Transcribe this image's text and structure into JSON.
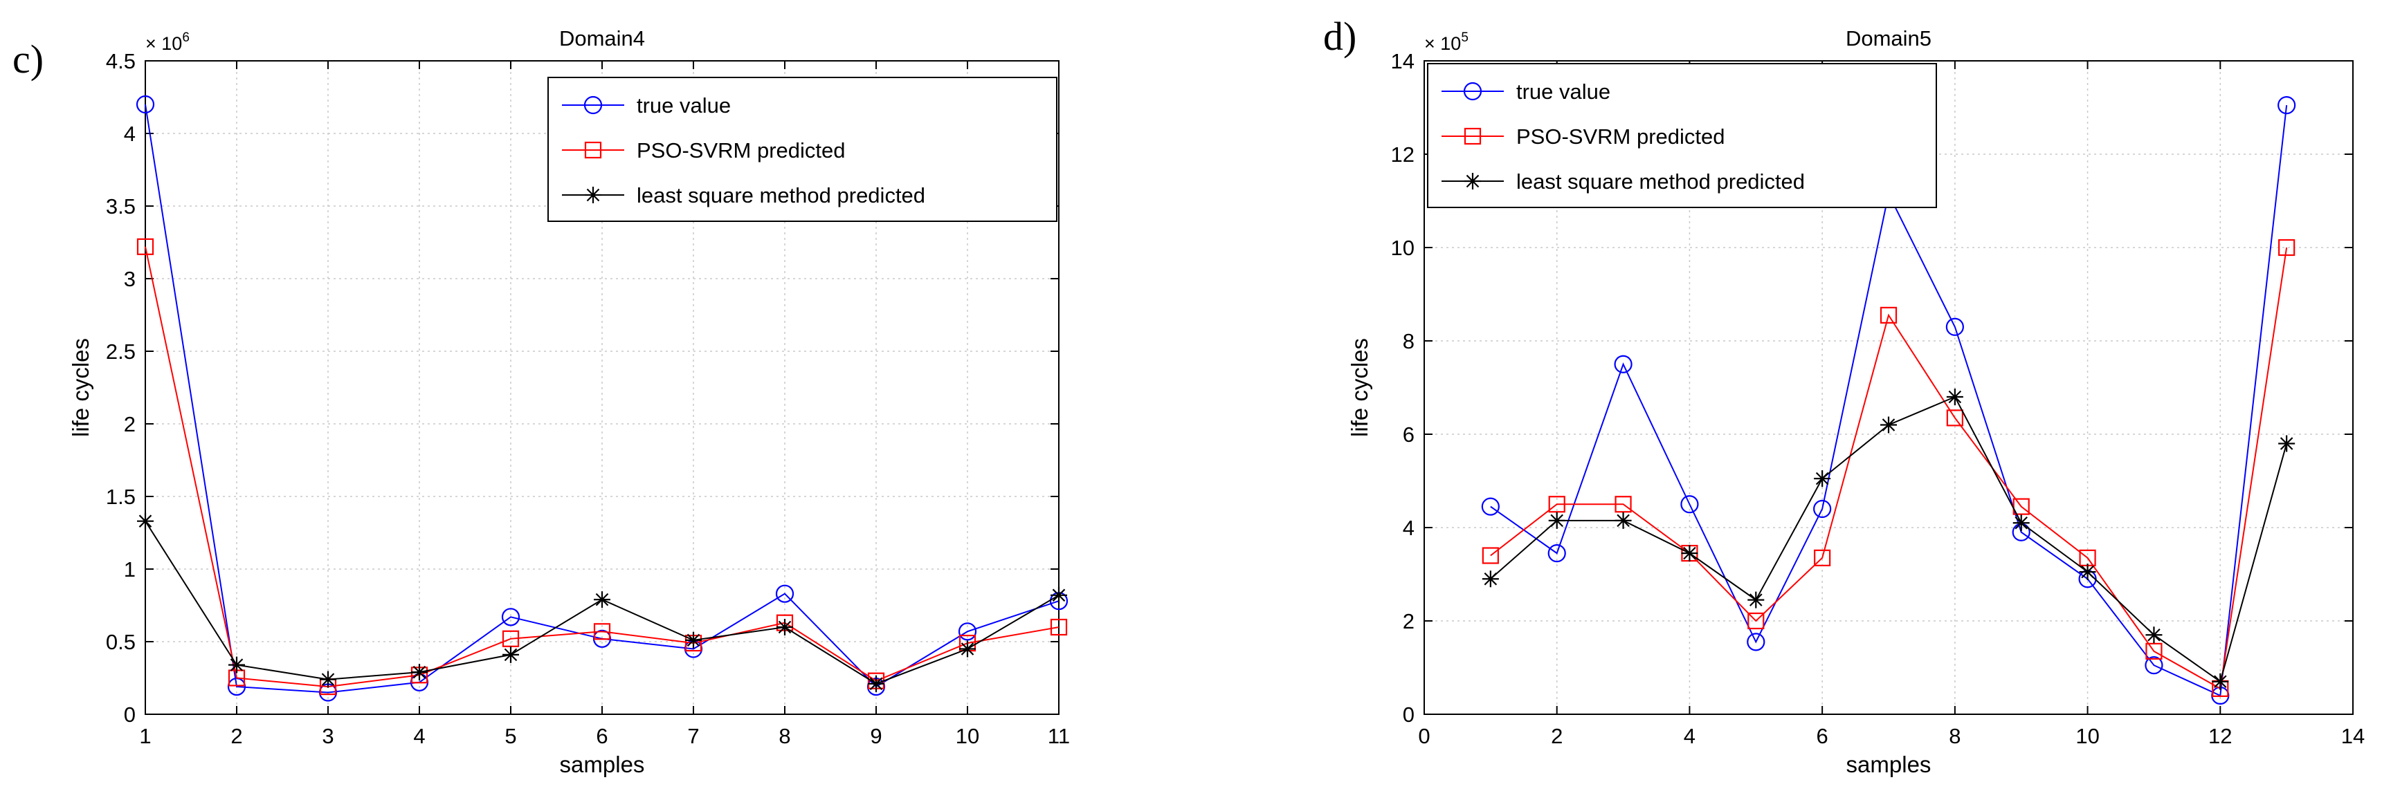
{
  "figure": {
    "panels": [
      "c)",
      "d)"
    ]
  },
  "colors": {
    "true_value": "#0000ff",
    "pso_svrm": "#ff0000",
    "least_square": "#000000",
    "grid": "#c8c8c8"
  },
  "chart_data": [
    {
      "type": "line",
      "panel_label": "c)",
      "title": "Domain4",
      "xlabel": "samples",
      "ylabel": "life cycles",
      "y_exponent_label": "× 10",
      "y_exponent_power": "6",
      "xlim": [
        1,
        11
      ],
      "ylim": [
        0,
        4.5
      ],
      "xticks": [
        1,
        2,
        3,
        4,
        5,
        6,
        7,
        8,
        9,
        10,
        11
      ],
      "xtick_labels": [
        "1",
        "2",
        "3",
        "4",
        "5",
        "6",
        "7",
        "8",
        "9",
        "10",
        "11"
      ],
      "yticks": [
        0,
        0.5,
        1,
        1.5,
        2,
        2.5,
        3,
        3.5,
        4,
        4.5
      ],
      "ytick_labels": [
        "0",
        "0.5",
        "1",
        "1.5",
        "2",
        "2.5",
        "3",
        "3.5",
        "4",
        "4.5"
      ],
      "grid": true,
      "legend_position": "top-right",
      "x": [
        1,
        2,
        3,
        4,
        5,
        6,
        7,
        8,
        9,
        10,
        11
      ],
      "series": [
        {
          "name": "true value",
          "marker": "circle",
          "color": "#0000ff",
          "values": [
            4.2,
            0.19,
            0.15,
            0.22,
            0.67,
            0.52,
            0.45,
            0.83,
            0.19,
            0.57,
            0.78
          ]
        },
        {
          "name": "PSO-SVRM predicted",
          "marker": "square",
          "color": "#ff0000",
          "values": [
            3.22,
            0.25,
            0.19,
            0.27,
            0.52,
            0.57,
            0.49,
            0.63,
            0.23,
            0.49,
            0.6
          ]
        },
        {
          "name": "least square method predicted",
          "marker": "star",
          "color": "#000000",
          "values": [
            1.33,
            0.34,
            0.24,
            0.29,
            0.41,
            0.79,
            0.51,
            0.6,
            0.21,
            0.45,
            0.82
          ]
        }
      ]
    },
    {
      "type": "line",
      "panel_label": "d)",
      "title": "Domain5",
      "xlabel": "samples",
      "ylabel": "life cycles",
      "y_exponent_label": "× 10",
      "y_exponent_power": "5",
      "xlim": [
        0,
        14
      ],
      "ylim": [
        0,
        14
      ],
      "xticks": [
        0,
        2,
        4,
        6,
        8,
        10,
        12,
        14
      ],
      "xtick_labels": [
        "0",
        "2",
        "4",
        "6",
        "8",
        "10",
        "12",
        "14"
      ],
      "yticks": [
        0,
        2,
        4,
        6,
        8,
        10,
        12,
        14
      ],
      "ytick_labels": [
        "0",
        "2",
        "4",
        "6",
        "8",
        "10",
        "12",
        "14"
      ],
      "grid": true,
      "legend_position": "top-left",
      "x": [
        1,
        2,
        3,
        4,
        5,
        6,
        7,
        8,
        9,
        10,
        11,
        12,
        13
      ],
      "series": [
        {
          "name": "true value",
          "marker": "circle",
          "color": "#0000ff",
          "values": [
            4.45,
            3.45,
            7.5,
            4.5,
            1.55,
            4.4,
            11.15,
            8.3,
            3.9,
            2.9,
            1.05,
            0.4,
            13.05
          ]
        },
        {
          "name": "PSO-SVRM predicted",
          "marker": "square",
          "color": "#ff0000",
          "values": [
            3.4,
            4.5,
            4.5,
            3.45,
            2.0,
            3.35,
            8.55,
            6.35,
            4.45,
            3.35,
            1.35,
            0.55,
            10.0
          ]
        },
        {
          "name": "least square method predicted",
          "marker": "star",
          "color": "#000000",
          "values": [
            2.9,
            4.15,
            4.15,
            3.45,
            2.45,
            5.05,
            6.2,
            6.8,
            4.1,
            3.05,
            1.7,
            0.7,
            5.8
          ]
        }
      ]
    }
  ]
}
